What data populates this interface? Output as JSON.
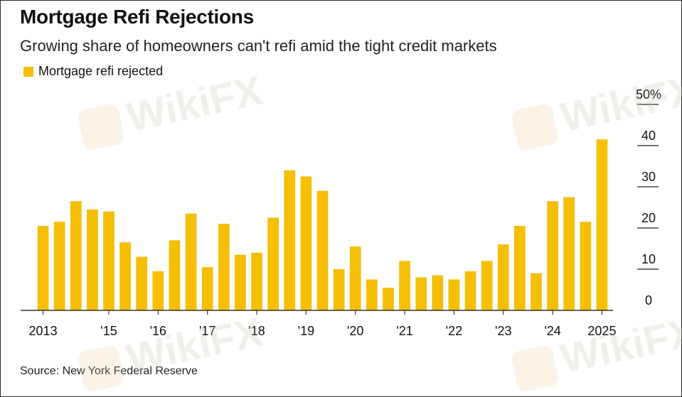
{
  "title": "Mortgage Refi Rejections",
  "subtitle": "Growing share of homeowners can't refi amid the tight credit markets",
  "source": "Source: New York Federal Reserve",
  "watermark_text": "WikiFX",
  "colors": {
    "bar": "#F5BE07",
    "axis": "#333333",
    "grid": "#222222",
    "text": "#111111"
  },
  "chart_data": {
    "type": "bar",
    "series": [
      {
        "name": "Mortgage refi rejected",
        "values": [
          20.5,
          21.5,
          26.5,
          24.5,
          24.0,
          16.5,
          13.0,
          9.5,
          17.0,
          23.5,
          10.5,
          21.0,
          13.5,
          14.0,
          22.5,
          34.0,
          32.5,
          29.0,
          10.0,
          15.5,
          7.5,
          5.5,
          12.0,
          8.0,
          8.5,
          7.5,
          9.5,
          12.0,
          16.0,
          20.5,
          9.0,
          26.5,
          27.5,
          21.5,
          41.5
        ]
      }
    ],
    "x_tick_labels": [
      "2013",
      "'15",
      "'16",
      "'17",
      "'18",
      "'19",
      "'20",
      "'21",
      "'22",
      "'23",
      "'24",
      "2025"
    ],
    "x_tick_bar_index": [
      0,
      4,
      7,
      10,
      13,
      16,
      19,
      22,
      25,
      28,
      31,
      34
    ],
    "y_ticks": [
      0,
      10,
      20,
      30,
      40,
      50
    ],
    "y_tick_labels": [
      "0",
      "10",
      "20",
      "30",
      "40",
      "50%"
    ],
    "ylim": [
      0,
      50
    ],
    "y_axis_position": "right",
    "grid": false,
    "legend_position": "top-left"
  }
}
